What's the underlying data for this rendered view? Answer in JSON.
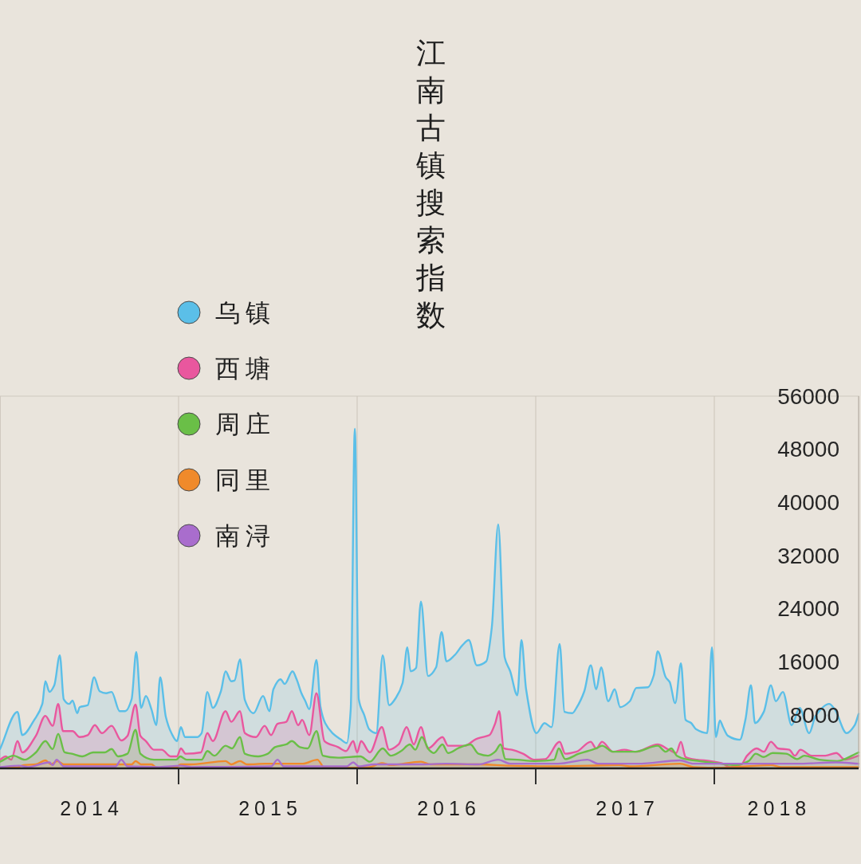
{
  "chart_data": {
    "type": "area",
    "title": "江南古镇搜索指数",
    "xlim": [
      2014,
      2018.808
    ],
    "ylim": [
      0,
      56000
    ],
    "xticks": [
      {
        "value": 2014.5,
        "label": "2014"
      },
      {
        "value": 2015,
        "label": null
      },
      {
        "value": 2015.5,
        "label": "2015"
      },
      {
        "value": 2016,
        "label": null
      },
      {
        "value": 2016.5,
        "label": "2016"
      },
      {
        "value": 2017,
        "label": null
      },
      {
        "value": 2017.5,
        "label": "2017"
      },
      {
        "value": 2018,
        "label": null
      },
      {
        "value": 2018.35,
        "label": "2018"
      }
    ],
    "yticks": [
      8000,
      16000,
      24000,
      32000,
      40000,
      48000,
      56000
    ],
    "grid": "x",
    "legend": "top left",
    "series": [
      {
        "name": "乌镇",
        "color": "#5bbfe8",
        "x": [
          2014.0,
          2014.098,
          2014.125,
          2014.192,
          2014.237,
          2014.254,
          2014.277,
          2014.304,
          2014.335,
          2014.357,
          2014.388,
          2014.406,
          2014.433,
          2014.446,
          2014.491,
          2014.527,
          2014.558,
          2014.594,
          2014.625,
          2014.67,
          2014.701,
          2014.737,
          2014.763,
          2014.79,
          2014.817,
          2014.848,
          2014.875,
          2014.897,
          2014.929,
          2014.96,
          2014.991,
          2015.013,
          2015.036,
          2015.103,
          2015.129,
          2015.161,
          2015.192,
          2015.237,
          2015.263,
          2015.295,
          2015.313,
          2015.344,
          2015.371,
          2015.42,
          2015.473,
          2015.509,
          2015.531,
          2015.571,
          2015.594,
          2015.638,
          2015.661,
          2015.688,
          2015.71,
          2015.732,
          2015.772,
          2015.795,
          2015.821,
          2015.862,
          2015.906,
          2015.942,
          2015.964,
          2015.987,
          2016.009,
          2016.04,
          2016.067,
          2016.107,
          2016.143,
          2016.179,
          2016.219,
          2016.254,
          2016.281,
          2016.299,
          2016.33,
          2016.357,
          2016.397,
          2016.442,
          2016.473,
          2016.5,
          2016.545,
          2016.589,
          2016.625,
          2016.67,
          2016.723,
          2016.754,
          2016.79,
          2016.826,
          2016.857,
          2016.897,
          2016.92,
          2016.946,
          2017.004,
          2017.049,
          2017.089,
          2017.134,
          2017.161,
          2017.205,
          2017.228,
          2017.272,
          2017.308,
          2017.339,
          2017.366,
          2017.406,
          2017.442,
          2017.473,
          2017.527,
          2017.563,
          2017.629,
          2017.661,
          2017.683,
          2017.728,
          2017.75,
          2017.781,
          2017.813,
          2017.839,
          2017.871,
          2017.897,
          2017.96,
          2017.987,
          2018.009,
          2018.031,
          2018.049,
          2018.076,
          2018.143,
          2018.174,
          2018.205,
          2018.228,
          2018.277,
          2018.317,
          2018.344,
          2018.384,
          2018.433,
          2018.478,
          2018.531,
          2018.567,
          2018.643,
          2018.674,
          2018.741,
          2018.786,
          2018.808
        ],
        "values": [
          2900,
          8500,
          5000,
          7300,
          9700,
          13100,
          11500,
          12500,
          17000,
          10400,
          9700,
          10200,
          8300,
          9200,
          9500,
          13700,
          11600,
          11300,
          11500,
          8600,
          8600,
          10400,
          17500,
          9100,
          10900,
          8900,
          6500,
          13700,
          7700,
          5300,
          4100,
          6200,
          4700,
          4700,
          5300,
          11500,
          9100,
          11600,
          14600,
          13100,
          13200,
          16400,
          10300,
          8300,
          10900,
          8600,
          11900,
          13400,
          12700,
          14600,
          13400,
          11300,
          10100,
          8900,
          16300,
          9200,
          6800,
          5300,
          4400,
          3800,
          8900,
          51100,
          10400,
          8000,
          5900,
          5300,
          17000,
          9500,
          10700,
          12800,
          18200,
          14600,
          15100,
          25100,
          13900,
          15200,
          20500,
          16100,
          17000,
          18500,
          19300,
          15500,
          16100,
          21200,
          36700,
          16700,
          14600,
          11000,
          19300,
          11900,
          5300,
          6800,
          6200,
          18700,
          8500,
          8300,
          9100,
          11600,
          15500,
          11900,
          15200,
          10100,
          11900,
          9200,
          10100,
          12100,
          12200,
          14000,
          17600,
          13700,
          13000,
          9800,
          15800,
          7300,
          6800,
          5900,
          5300,
          18200,
          4700,
          7200,
          6200,
          4900,
          4300,
          7300,
          12500,
          6800,
          8500,
          12500,
          10100,
          11500,
          6500,
          9100,
          5300,
          7900,
          9700,
          8900,
          5300,
          6500,
          8200
        ]
      },
      {
        "name": "西塘",
        "color": "#e9579e",
        "x": [
          2014.0,
          2014.031,
          2014.063,
          2014.098,
          2014.125,
          2014.201,
          2014.254,
          2014.295,
          2014.326,
          2014.353,
          2014.406,
          2014.446,
          2014.491,
          2014.531,
          2014.571,
          2014.625,
          2014.679,
          2014.714,
          2014.759,
          2014.786,
          2014.817,
          2014.862,
          2014.906,
          2014.955,
          2014.991,
          2015.013,
          2015.04,
          2015.125,
          2015.161,
          2015.192,
          2015.263,
          2015.295,
          2015.344,
          2015.371,
          2015.433,
          2015.482,
          2015.518,
          2015.554,
          2015.603,
          2015.634,
          2015.67,
          2015.692,
          2015.732,
          2015.772,
          2015.817,
          2015.893,
          2015.938,
          2015.978,
          2016.0,
          2016.022,
          2016.071,
          2016.138,
          2016.179,
          2016.232,
          2016.277,
          2016.317,
          2016.357,
          2016.397,
          2016.478,
          2016.509,
          2016.603,
          2016.665,
          2016.701,
          2016.741,
          2016.772,
          2016.795,
          2016.821,
          2016.866,
          2016.929,
          2016.991,
          2017.054,
          2017.134,
          2017.165,
          2017.228,
          2017.308,
          2017.339,
          2017.371,
          2017.433,
          2017.496,
          2017.558,
          2017.683,
          2017.746,
          2017.786,
          2017.813,
          2017.839,
          2017.902,
          2017.978,
          2018.04,
          2018.089,
          2018.152,
          2018.183,
          2018.237,
          2018.277,
          2018.317,
          2018.357,
          2018.42,
          2018.451,
          2018.482,
          2018.545,
          2018.621,
          2018.683,
          2018.732,
          2018.808
        ],
        "values": [
          1300,
          1800,
          1300,
          4100,
          2400,
          4900,
          7900,
          6400,
          9700,
          5600,
          5600,
          4700,
          5000,
          6500,
          5300,
          6400,
          4200,
          4900,
          9600,
          4900,
          4100,
          2800,
          2800,
          1800,
          1800,
          3000,
          2200,
          2400,
          5300,
          4100,
          8600,
          7000,
          8600,
          5300,
          4700,
          6400,
          5000,
          6700,
          7000,
          8600,
          6500,
          7300,
          5000,
          11300,
          4100,
          3200,
          2600,
          4100,
          2400,
          4100,
          2400,
          6200,
          2800,
          3600,
          6200,
          3600,
          6200,
          3000,
          4700,
          3400,
          3400,
          4400,
          4700,
          5000,
          6700,
          8600,
          3000,
          2800,
          2200,
          1300,
          1400,
          4000,
          2200,
          2500,
          4000,
          3000,
          4000,
          2500,
          2800,
          2500,
          3600,
          2800,
          2300,
          4000,
          1700,
          1300,
          1100,
          800,
          200,
          600,
          1900,
          3000,
          2500,
          4000,
          3000,
          2800,
          1900,
          2800,
          1900,
          1900,
          2300,
          1300,
          1900
        ]
      },
      {
        "name": "周庄",
        "color": "#6abf47",
        "x": [
          2014.0,
          2014.076,
          2014.138,
          2014.201,
          2014.254,
          2014.295,
          2014.326,
          2014.362,
          2014.402,
          2014.46,
          2014.522,
          2014.585,
          2014.625,
          2014.661,
          2014.714,
          2014.759,
          2014.786,
          2014.862,
          2014.987,
          2015.009,
          2015.045,
          2015.129,
          2015.161,
          2015.201,
          2015.263,
          2015.299,
          2015.344,
          2015.371,
          2015.446,
          2015.5,
          2015.54,
          2015.603,
          2015.634,
          2015.679,
          2015.723,
          2015.772,
          2015.808,
          2015.893,
          2016.018,
          2016.071,
          2016.143,
          2016.188,
          2016.246,
          2016.295,
          2016.326,
          2016.362,
          2016.402,
          2016.429,
          2016.478,
          2016.509,
          2016.571,
          2016.634,
          2016.679,
          2016.732,
          2016.772,
          2016.804,
          2016.83,
          2016.897,
          2016.991,
          2017.103,
          2017.129,
          2017.165,
          2017.241,
          2017.339,
          2017.371,
          2017.433,
          2017.558,
          2017.683,
          2017.728,
          2017.759,
          2017.79,
          2017.839,
          2017.915,
          2018.009,
          2018.121,
          2018.192,
          2018.232,
          2018.277,
          2018.326,
          2018.402,
          2018.464,
          2018.504,
          2018.589,
          2018.688,
          2018.808
        ],
        "values": [
          1000,
          1900,
          1300,
          2400,
          4100,
          2900,
          5200,
          2400,
          2200,
          1800,
          2400,
          2400,
          2900,
          1800,
          2200,
          5800,
          2200,
          1300,
          1300,
          1800,
          1300,
          1300,
          2600,
          1900,
          3400,
          3000,
          4700,
          2200,
          1800,
          2200,
          3200,
          3600,
          4100,
          3200,
          3000,
          5600,
          1900,
          1600,
          1800,
          1000,
          3000,
          1900,
          2600,
          3600,
          2800,
          4700,
          2800,
          2300,
          3600,
          2300,
          3100,
          3600,
          2200,
          1900,
          2500,
          3600,
          1400,
          1300,
          1100,
          1300,
          3000,
          1400,
          2200,
          3000,
          3400,
          2500,
          2500,
          3400,
          2500,
          3000,
          1900,
          1400,
          1100,
          800,
          500,
          1100,
          2200,
          1700,
          2300,
          2200,
          1400,
          1900,
          1300,
          1100,
          2400
        ]
      },
      {
        "name": "同里",
        "color": "#f08a2b",
        "x": [
          2014.0,
          2014.089,
          2014.134,
          2014.201,
          2014.254,
          2014.286,
          2014.321,
          2014.357,
          2014.737,
          2014.759,
          2014.79,
          2014.848,
          2014.879,
          2014.982,
          2015.013,
          2015.071,
          2015.263,
          2015.295,
          2015.344,
          2015.384,
          2015.487,
          2015.696,
          2015.777,
          2015.817,
          2015.991,
          2016.071,
          2016.138,
          2016.188,
          2016.357,
          2016.411,
          2016.679,
          2016.857,
          2017.125,
          2017.469,
          2017.527,
          2017.808,
          2017.884,
          2018.04,
          2018.317,
          2018.375,
          2018.808
        ],
        "values": [
          100,
          100,
          500,
          600,
          1200,
          600,
          1100,
          600,
          600,
          1100,
          600,
          600,
          100,
          100,
          600,
          600,
          1100,
          600,
          1100,
          600,
          700,
          700,
          1300,
          100,
          100,
          200,
          800,
          500,
          1000,
          600,
          600,
          400,
          300,
          500,
          300,
          700,
          200,
          100,
          500,
          200,
          200
        ]
      },
      {
        "name": "南浔",
        "color": "#a96dcd",
        "type": "line",
        "x": [
          2014.0,
          2014.107,
          2014.156,
          2014.277,
          2014.295,
          2014.317,
          2014.357,
          2014.647,
          2014.679,
          2014.714,
          2014.893,
          2015.013,
          2015.071,
          2015.518,
          2015.554,
          2015.589,
          2015.942,
          2015.978,
          2016.009,
          2016.098,
          2016.357,
          2016.5,
          2016.679,
          2016.79,
          2016.857,
          2017.125,
          2017.29,
          2017.348,
          2017.571,
          2017.808,
          2017.884,
          2018.464,
          2018.683,
          2018.808
        ],
        "values": [
          200,
          400,
          200,
          900,
          500,
          1300,
          300,
          300,
          1300,
          300,
          200,
          400,
          200,
          300,
          1300,
          300,
          300,
          900,
          300,
          600,
          600,
          700,
          600,
          1300,
          700,
          700,
          1300,
          700,
          700,
          1200,
          700,
          700,
          900,
          700
        ]
      }
    ]
  }
}
